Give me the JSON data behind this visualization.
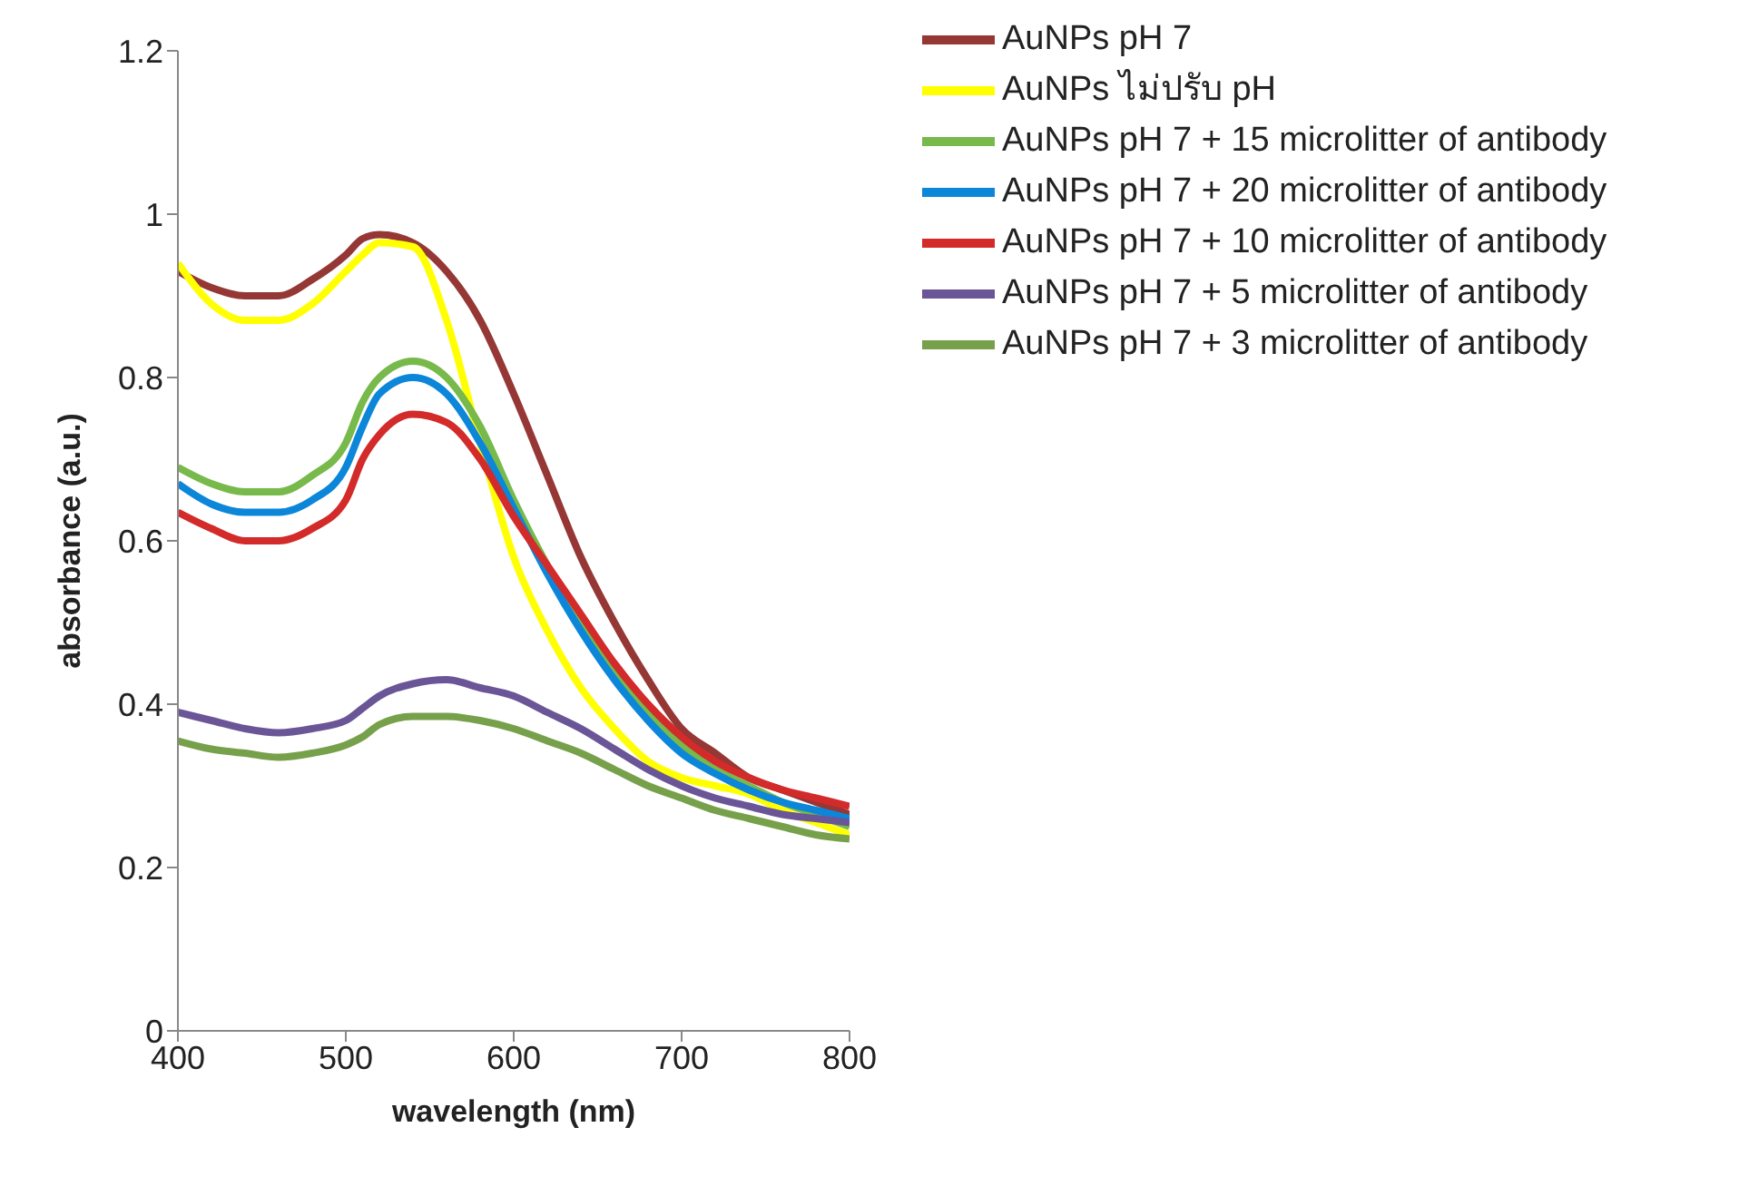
{
  "chart_data": {
    "type": "line",
    "xlabel": "wavelength (nm)",
    "ylabel": "absorbance (a.u.)",
    "x": [
      400,
      420,
      440,
      460,
      480,
      500,
      510,
      520,
      540,
      560,
      580,
      600,
      620,
      640,
      660,
      680,
      700,
      720,
      740,
      760,
      780,
      800
    ],
    "xlim": [
      400,
      800
    ],
    "xticks": [
      400,
      500,
      600,
      700,
      800
    ],
    "ylim": [
      0,
      1.2
    ],
    "yticks": [
      0,
      0.2,
      0.4,
      0.6,
      0.8,
      1,
      1.2
    ],
    "grid": false,
    "legend": "top right",
    "series": [
      {
        "name": "AuNPs pH 7",
        "color": "#953735",
        "values": [
          0.93,
          0.91,
          0.9,
          0.9,
          0.92,
          0.95,
          0.97,
          0.975,
          0.965,
          0.93,
          0.87,
          0.78,
          0.68,
          0.58,
          0.5,
          0.43,
          0.37,
          0.34,
          0.31,
          0.295,
          0.28,
          0.265
        ]
      },
      {
        "name": "AuNPs ไม่ปรับ pH",
        "color": "#ffff00",
        "values": [
          0.94,
          0.89,
          0.87,
          0.87,
          0.89,
          0.93,
          0.95,
          0.965,
          0.96,
          0.87,
          0.72,
          0.58,
          0.49,
          0.42,
          0.37,
          0.33,
          0.31,
          0.3,
          0.29,
          0.27,
          0.255,
          0.24
        ]
      },
      {
        "name": "AuNPs pH 7 + 15 microlitter of antibody",
        "color": "#77b94a",
        "values": [
          0.69,
          0.67,
          0.66,
          0.66,
          0.68,
          0.72,
          0.77,
          0.8,
          0.82,
          0.8,
          0.74,
          0.65,
          0.57,
          0.5,
          0.44,
          0.39,
          0.35,
          0.32,
          0.3,
          0.28,
          0.265,
          0.25
        ]
      },
      {
        "name": "AuNPs pH 7 + 20 microlitter of antibody",
        "color": "#0b86d9",
        "values": [
          0.67,
          0.645,
          0.635,
          0.635,
          0.65,
          0.69,
          0.74,
          0.78,
          0.8,
          0.78,
          0.72,
          0.64,
          0.56,
          0.49,
          0.43,
          0.38,
          0.34,
          0.315,
          0.295,
          0.28,
          0.27,
          0.26
        ]
      },
      {
        "name": "AuNPs pH 7 + 10 microlitter of antibody",
        "color": "#d32a2a",
        "values": [
          0.635,
          0.615,
          0.6,
          0.6,
          0.615,
          0.65,
          0.7,
          0.73,
          0.755,
          0.745,
          0.7,
          0.63,
          0.57,
          0.51,
          0.45,
          0.4,
          0.36,
          0.33,
          0.31,
          0.295,
          0.285,
          0.275
        ]
      },
      {
        "name": "AuNPs pH 7 + 5 microlitter of antibody",
        "color": "#6a5597",
        "values": [
          0.39,
          0.38,
          0.37,
          0.365,
          0.37,
          0.38,
          0.395,
          0.41,
          0.425,
          0.43,
          0.42,
          0.41,
          0.39,
          0.37,
          0.345,
          0.32,
          0.3,
          0.285,
          0.275,
          0.265,
          0.26,
          0.255
        ]
      },
      {
        "name": "AuNPs pH 7 + 3 microlitter of antibody",
        "color": "#77a04b",
        "values": [
          0.355,
          0.345,
          0.34,
          0.335,
          0.34,
          0.35,
          0.36,
          0.375,
          0.385,
          0.385,
          0.38,
          0.37,
          0.355,
          0.34,
          0.32,
          0.3,
          0.285,
          0.27,
          0.26,
          0.25,
          0.24,
          0.235
        ]
      }
    ]
  }
}
